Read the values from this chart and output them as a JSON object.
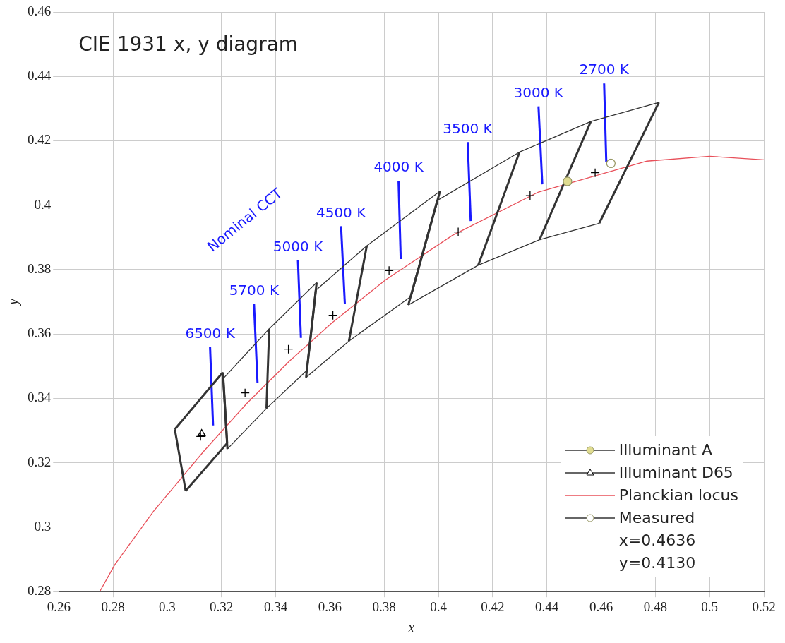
{
  "chart_data": {
    "type": "line",
    "title": "CIE 1931 x, y diagram",
    "xlabel": "x",
    "ylabel": "y",
    "xlim": [
      0.26,
      0.52
    ],
    "xticks": [
      0.26,
      0.28,
      0.3,
      0.32,
      0.34,
      0.36,
      0.38,
      0.4,
      0.42,
      0.44,
      0.46,
      0.48,
      0.5,
      0.52
    ],
    "ylim": [
      0.28,
      0.46
    ],
    "yticks": [
      0.28,
      0.3,
      0.32,
      0.34,
      0.36,
      0.38,
      0.4,
      0.42,
      0.44,
      0.46
    ],
    "grid": true,
    "legend": "bottom right",
    "series": [
      {
        "color": "#333333",
        "x": [
          0.3996,
          0.4299,
          0.4562,
          0.4813
        ],
        "values": [
          0.4015,
          0.4165,
          0.426,
          0.4319
        ]
      },
      {
        "color": "#333333",
        "x": [
          0.3548,
          0.3736,
          0.4006
        ],
        "values": [
          0.3736,
          0.3874,
          0.4044
        ]
      },
      {
        "color": "#333333",
        "x": [
          0.3207,
          0.3376,
          0.3551
        ],
        "values": [
          0.3462,
          0.3616,
          0.376
        ]
      },
      {
        "color": "#333333",
        "x": [
          0.3028,
          0.3205
        ],
        "values": [
          0.3304,
          0.3481
        ]
      },
      {
        "color": "#333333",
        "x": [
          0.3889,
          0.4147,
          0.4373,
          0.4593
        ],
        "values": [
          0.369,
          0.3814,
          0.3893,
          0.3944
        ]
      },
      {
        "color": "#333333",
        "x": [
          0.3512,
          0.367,
          0.3898
        ],
        "values": [
          0.3465,
          0.3578,
          0.3716
        ]
      },
      {
        "color": "#333333",
        "x": [
          0.3222,
          0.3366,
          0.3515
        ],
        "values": [
          0.3243,
          0.3369,
          0.3487
        ]
      },
      {
        "color": "#333333",
        "x": [
          0.3068,
          0.3221
        ],
        "values": [
          0.3113,
          0.3261
        ]
      },
      {
        "color": "#333333",
        "x": [
          0.4593,
          0.4813
        ],
        "values": [
          0.3944,
          0.4319
        ]
      },
      {
        "color": "#333333",
        "x": [
          0.4373,
          0.4562
        ],
        "values": [
          0.3893,
          0.426
        ]
      },
      {
        "color": "#333333",
        "x": [
          0.4147,
          0.4299
        ],
        "values": [
          0.3814,
          0.4165
        ]
      },
      {
        "color": "#333333",
        "x": [
          0.3889,
          0.3996
        ],
        "values": [
          0.369,
          0.4015
        ]
      },
      {
        "color": "#333333",
        "x": [
          0.3898,
          0.4006
        ],
        "values": [
          0.3716,
          0.4044
        ]
      },
      {
        "color": "#333333",
        "x": [
          0.367,
          0.3736
        ],
        "values": [
          0.3578,
          0.3874
        ]
      },
      {
        "color": "#333333",
        "x": [
          0.3512,
          0.3548
        ],
        "values": [
          0.3465,
          0.3736
        ]
      },
      {
        "color": "#333333",
        "x": [
          0.3515,
          0.3551
        ],
        "values": [
          0.3487,
          0.376
        ]
      },
      {
        "color": "#333333",
        "x": [
          0.3366,
          0.3376
        ],
        "values": [
          0.3369,
          0.3616
        ]
      },
      {
        "color": "#333333",
        "x": [
          0.3207,
          0.3222
        ],
        "values": [
          0.3462,
          0.3243
        ]
      },
      {
        "color": "#333333",
        "x": [
          0.3205,
          0.3221
        ],
        "values": [
          0.3481,
          0.3261
        ]
      },
      {
        "color": "#333333",
        "x": [
          0.3028,
          0.3068
        ],
        "values": [
          0.3304,
          0.3113
        ]
      },
      {
        "color": "#1a1aff",
        "x": [
          0.3158,
          0.3169
        ],
        "values": [
          0.3559,
          0.3316
        ]
      },
      {
        "color": "#1a1aff",
        "x": [
          0.332,
          0.3333
        ],
        "values": [
          0.3693,
          0.3448
        ]
      },
      {
        "color": "#1a1aff",
        "x": [
          0.3482,
          0.3493
        ],
        "values": [
          0.3829,
          0.3588
        ]
      },
      {
        "color": "#1a1aff",
        "x": [
          0.3641,
          0.3655
        ],
        "values": [
          0.3935,
          0.3693
        ]
      },
      {
        "color": "#1a1aff",
        "x": [
          0.3853,
          0.3861
        ],
        "values": [
          0.4076,
          0.3833
        ]
      },
      {
        "color": "#1a1aff",
        "x": [
          0.4108,
          0.4119
        ],
        "values": [
          0.4196,
          0.3951
        ]
      },
      {
        "color": "#1a1aff",
        "x": [
          0.4369,
          0.4383
        ],
        "values": [
          0.4307,
          0.4065
        ]
      },
      {
        "color": "#1a1aff",
        "x": [
          0.4611,
          0.4619
        ],
        "values": [
          0.4378,
          0.4133
        ]
      },
      {
        "type": "scatter",
        "color": "#000000",
        "marker": "cross",
        "x": [
          0.3123,
          0.3287,
          0.3447,
          0.3611,
          0.3818,
          0.4073,
          0.4338,
          0.4578
        ],
        "values": [
          0.3282,
          0.3417,
          0.3553,
          0.3658,
          0.3797,
          0.3917,
          0.403,
          0.4101
        ]
      },
      {
        "name": "Illuminant A",
        "type": "scatter",
        "color": "#e0dc90",
        "marker": "circle",
        "x": [
          0.4476
        ],
        "values": [
          0.4074
        ]
      },
      {
        "name": "Illuminant D65",
        "type": "scatter",
        "color": "#000000",
        "marker": "triangle",
        "x": [
          0.3127
        ],
        "values": [
          0.329
        ]
      },
      {
        "name": "Planckian locus",
        "color": "#e8505a",
        "x": [
          0.2751,
          0.2807,
          0.295,
          0.3135,
          0.3293,
          0.3451,
          0.3608,
          0.3805,
          0.4053,
          0.4369,
          0.4769,
          0.5,
          0.52
        ],
        "values": [
          0.28,
          0.2884,
          0.305,
          0.3236,
          0.3384,
          0.3516,
          0.3635,
          0.3768,
          0.3907,
          0.4041,
          0.4137,
          0.4152,
          0.4141
        ]
      },
      {
        "name": "Measured",
        "type": "scatter",
        "color": "#ffffff",
        "marker": "circle",
        "x": [
          0.4636
        ],
        "values": [
          0.413
        ]
      }
    ],
    "annotations": [
      "Nominal CCT",
      {
        "text": "6500 K",
        "x": 0.3158,
        "y": 0.3559
      },
      {
        "text": "5700 K",
        "x": 0.332,
        "y": 0.3693
      },
      {
        "text": "5000 K",
        "x": 0.3482,
        "y": 0.3829
      },
      {
        "text": "4500 K",
        "x": 0.3641,
        "y": 0.3935
      },
      {
        "text": "4000 K",
        "x": 0.3853,
        "y": 0.4076
      },
      {
        "text": "3500 K",
        "x": 0.4108,
        "y": 0.4196
      },
      {
        "text": "3000 K",
        "x": 0.4369,
        "y": 0.4307
      },
      {
        "text": "2700 K",
        "x": 0.4611,
        "y": 0.4378
      },
      "x=0.4636",
      "y=0.4130"
    ]
  }
}
